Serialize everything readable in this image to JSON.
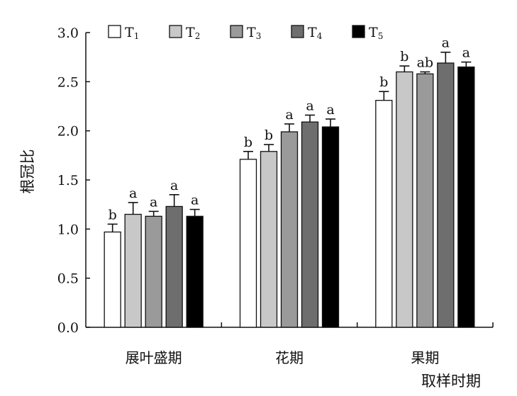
{
  "chart_data": {
    "type": "bar",
    "title": "",
    "xlabel": "取样时期",
    "ylabel": "根冠比",
    "ylim": [
      0,
      3.0
    ],
    "yticks": [
      "0.0",
      "0.5",
      "1.0",
      "1.5",
      "2.0",
      "2.5",
      "3.0"
    ],
    "categories": [
      "展叶盛期",
      "花期",
      "果期"
    ],
    "legend_position": "top",
    "series": [
      {
        "name": "T",
        "sub": "1",
        "color": "#ffffff",
        "values": [
          0.97,
          1.71,
          2.31
        ],
        "errors": [
          0.08,
          0.08,
          0.09
        ],
        "labels": [
          "b",
          "b",
          "b"
        ]
      },
      {
        "name": "T",
        "sub": "2",
        "color": "#c8c8c8",
        "values": [
          1.15,
          1.79,
          2.6
        ],
        "errors": [
          0.12,
          0.07,
          0.06
        ],
        "labels": [
          "a",
          "b",
          "b"
        ]
      },
      {
        "name": "T",
        "sub": "3",
        "color": "#9a9a9a",
        "values": [
          1.13,
          1.99,
          2.58
        ],
        "errors": [
          0.05,
          0.08,
          0.02
        ],
        "labels": [
          "a",
          "a",
          "ab"
        ]
      },
      {
        "name": "T",
        "sub": "4",
        "color": "#6e6e6e",
        "values": [
          1.23,
          2.09,
          2.69
        ],
        "errors": [
          0.12,
          0.07,
          0.11
        ],
        "labels": [
          "a",
          "a",
          "a"
        ]
      },
      {
        "name": "T",
        "sub": "5",
        "color": "#000000",
        "values": [
          1.13,
          2.04,
          2.65
        ],
        "errors": [
          0.07,
          0.08,
          0.05
        ],
        "labels": [
          "a",
          "a",
          "a"
        ]
      }
    ]
  }
}
